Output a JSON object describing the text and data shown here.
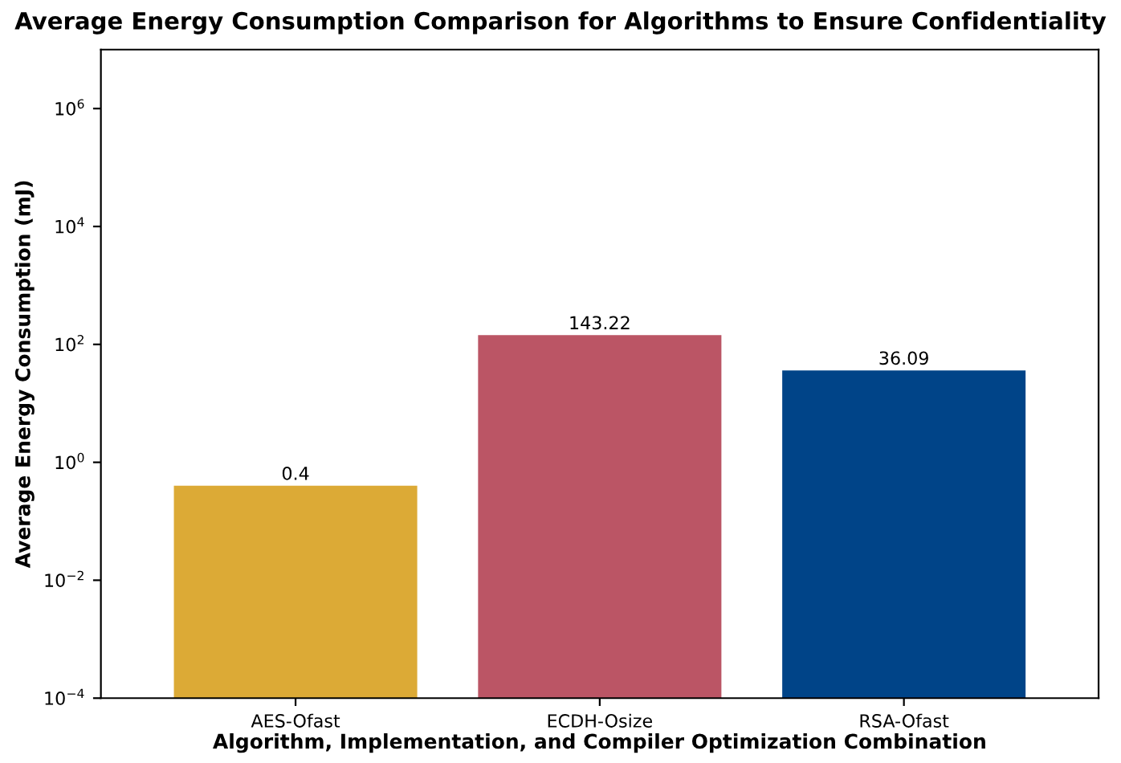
{
  "chart_data": {
    "type": "bar",
    "title": "Average Energy Consumption Comparison for Algorithms to Ensure Confidentiality",
    "xlabel": "Algorithm, Implementation, and Compiler Optimization Combination",
    "ylabel": "Average Energy Consumption (mJ)",
    "categories": [
      "AES-Ofast",
      "ECDH-Osize",
      "RSA-Ofast"
    ],
    "values": [
      0.4,
      143.22,
      36.09
    ],
    "colors": [
      "#dcaa36",
      "#bb5565",
      "#004488"
    ],
    "data_labels": true,
    "log": "y",
    "ylim": [
      0.0001,
      10000000
    ],
    "yticks": [
      {
        "value": 0.0001,
        "label": "10$^{−4}$"
      },
      {
        "value": 0.01,
        "label": "10$^{−2}$"
      },
      {
        "value": 1,
        "label": "10$^{0}$"
      },
      {
        "value": 100,
        "label": "10$^{2}$"
      },
      {
        "value": 10000,
        "label": "10$^{4}$"
      },
      {
        "value": 1000000,
        "label": "10$^{6}$"
      }
    ],
    "grid": false,
    "legend": false
  }
}
